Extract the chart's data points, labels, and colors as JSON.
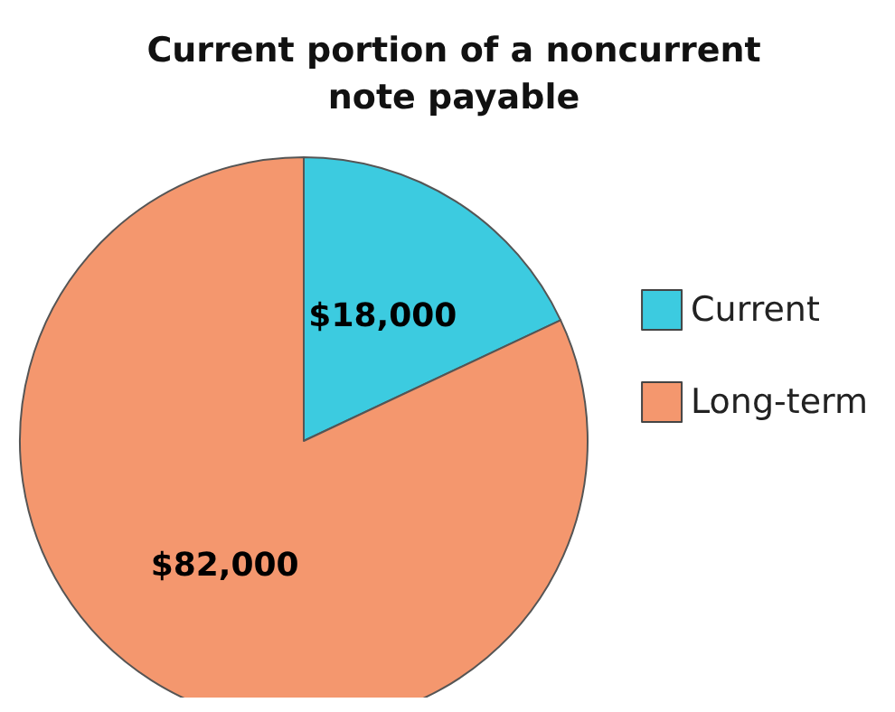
{
  "chart_data": {
    "type": "pie",
    "title": "Current portion of a noncurrent\nnote payable",
    "categories": [
      "Current",
      "Long-term"
    ],
    "values": [
      18000,
      82000
    ],
    "value_labels": [
      "$18,000",
      "$82,000"
    ],
    "colors": [
      "#3ccbe0",
      "#f4976e"
    ],
    "legend": "right"
  }
}
